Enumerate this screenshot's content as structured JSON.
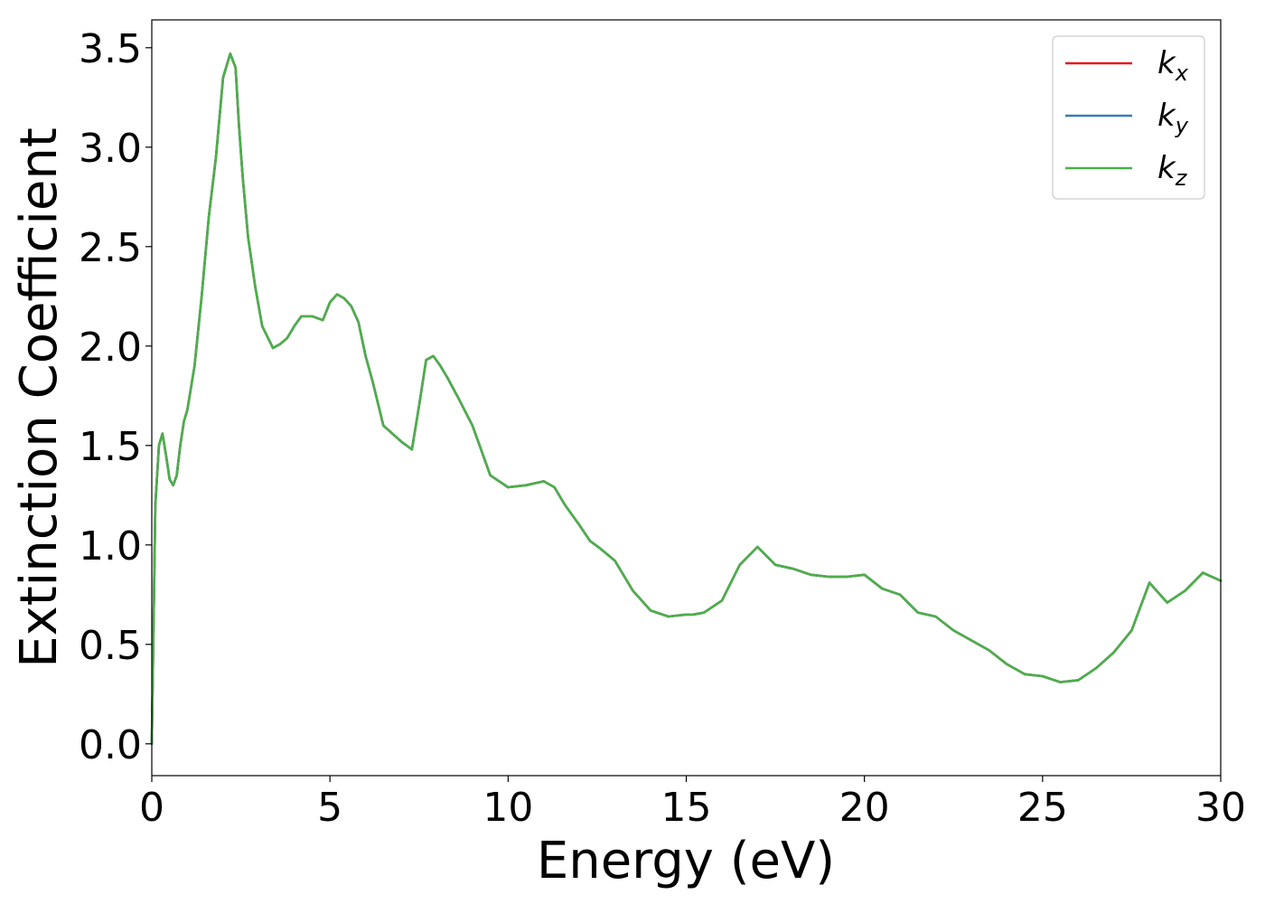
{
  "chart_data": {
    "type": "line",
    "xlabel": "Energy (eV)",
    "ylabel": "Extinction Coefficient",
    "xlim": [
      0,
      30
    ],
    "ylim": [
      -0.16,
      3.64
    ],
    "xticks": [
      0,
      5,
      10,
      15,
      20,
      25,
      30
    ],
    "xtick_labels": [
      "0",
      "5",
      "10",
      "15",
      "20",
      "25",
      "30"
    ],
    "yticks": [
      0.0,
      0.5,
      1.0,
      1.5,
      2.0,
      2.5,
      3.0,
      3.5
    ],
    "ytick_labels": [
      "0.0",
      "0.5",
      "1.0",
      "1.5",
      "2.0",
      "2.5",
      "3.0",
      "3.5"
    ],
    "grid": false,
    "legend_position": "top-right",
    "series": [
      {
        "name": "k",
        "subscript": "x",
        "color": "#e41a1c"
      },
      {
        "name": "k",
        "subscript": "y",
        "color": "#377eb8"
      },
      {
        "name": "k",
        "subscript": "z",
        "color": "#4daf4a"
      }
    ],
    "x": [
      0,
      0.1,
      0.2,
      0.3,
      0.4,
      0.5,
      0.6,
      0.7,
      0.8,
      0.9,
      1.0,
      1.2,
      1.4,
      1.6,
      1.8,
      2.0,
      2.2,
      2.35,
      2.45,
      2.55,
      2.7,
      2.9,
      3.1,
      3.4,
      3.6,
      3.8,
      4.0,
      4.2,
      4.5,
      4.8,
      5.0,
      5.2,
      5.4,
      5.6,
      5.8,
      6.0,
      6.2,
      6.5,
      7.0,
      7.3,
      7.5,
      7.7,
      7.9,
      8.1,
      8.3,
      8.6,
      9.0,
      9.5,
      10.0,
      10.5,
      11.0,
      11.3,
      11.6,
      12.0,
      12.3,
      12.6,
      13.0,
      13.5,
      14.0,
      14.5,
      15.0,
      15.2,
      15.5,
      16.0,
      16.5,
      17.0,
      17.5,
      18.0,
      18.5,
      19.0,
      19.5,
      20.0,
      20.5,
      21.0,
      21.5,
      22.0,
      22.5,
      23.0,
      23.5,
      24.0,
      24.5,
      25.0,
      25.5,
      26.0,
      26.5,
      27.0,
      27.5,
      28.0,
      28.5,
      29.0,
      29.5,
      30.0
    ],
    "values": [
      0.0,
      1.2,
      1.5,
      1.56,
      1.45,
      1.33,
      1.3,
      1.35,
      1.5,
      1.62,
      1.68,
      1.9,
      2.25,
      2.65,
      2.95,
      3.35,
      3.47,
      3.4,
      3.1,
      2.85,
      2.55,
      2.3,
      2.1,
      1.99,
      2.01,
      2.04,
      2.1,
      2.15,
      2.15,
      2.13,
      2.22,
      2.26,
      2.24,
      2.2,
      2.12,
      1.95,
      1.82,
      1.6,
      1.52,
      1.48,
      1.7,
      1.93,
      1.95,
      1.9,
      1.84,
      1.74,
      1.6,
      1.35,
      1.29,
      1.3,
      1.32,
      1.29,
      1.2,
      1.1,
      1.02,
      0.98,
      0.92,
      0.77,
      0.67,
      0.64,
      0.65,
      0.65,
      0.66,
      0.72,
      0.9,
      0.99,
      0.9,
      0.88,
      0.85,
      0.84,
      0.84,
      0.85,
      0.78,
      0.75,
      0.66,
      0.64,
      0.57,
      0.52,
      0.47,
      0.4,
      0.35,
      0.34,
      0.31,
      0.32,
      0.38,
      0.46,
      0.57,
      0.81,
      0.71,
      0.77,
      0.86,
      0.82
    ]
  }
}
